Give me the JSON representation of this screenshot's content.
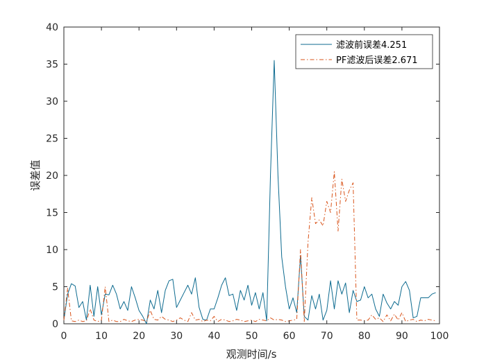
{
  "chart_data": {
    "type": "line",
    "title": "",
    "xlabel": "观测时间/s",
    "ylabel": "误差值",
    "xlim": [
      0,
      100
    ],
    "ylim": [
      0,
      40
    ],
    "xticks": [
      0,
      10,
      20,
      30,
      40,
      50,
      60,
      70,
      80,
      90,
      100
    ],
    "yticks": [
      0,
      5,
      10,
      15,
      20,
      25,
      30,
      35,
      40
    ],
    "grid": false,
    "legend_position": "top-right",
    "x": [
      0,
      1,
      2,
      3,
      4,
      5,
      6,
      7,
      8,
      9,
      10,
      11,
      12,
      13,
      14,
      15,
      16,
      17,
      18,
      19,
      20,
      21,
      22,
      23,
      24,
      25,
      26,
      27,
      28,
      29,
      30,
      31,
      32,
      33,
      34,
      35,
      36,
      37,
      38,
      39,
      40,
      41,
      42,
      43,
      44,
      45,
      46,
      47,
      48,
      49,
      50,
      51,
      52,
      53,
      54,
      55,
      56,
      57,
      58,
      59,
      60,
      61,
      62,
      63,
      64,
      65,
      66,
      67,
      68,
      69,
      70,
      71,
      72,
      73,
      74,
      75,
      76,
      77,
      78,
      79,
      80,
      81,
      82,
      83,
      84,
      85,
      86,
      87,
      88,
      89,
      90,
      91,
      92,
      93,
      94,
      95,
      96,
      97,
      98,
      99
    ],
    "series": [
      {
        "name": "滤波前误差4.251",
        "color": "#0c6a8f",
        "dash": "solid",
        "values": [
          0.5,
          4.0,
          5.4,
          5.1,
          2.2,
          3.0,
          0.5,
          5.2,
          1.0,
          5.0,
          1.2,
          4.0,
          3.9,
          5.2,
          4.0,
          2.0,
          3.0,
          1.8,
          5.0,
          3.5,
          1.8,
          1.0,
          0.0,
          3.2,
          2.0,
          4.5,
          1.5,
          4.5,
          5.8,
          6.0,
          2.2,
          3.2,
          4.2,
          5.2,
          4.0,
          6.2,
          2.2,
          0.6,
          0.5,
          2.0,
          2.0,
          3.5,
          5.2,
          6.2,
          3.8,
          4.0,
          1.8,
          4.5,
          3.2,
          5.2,
          2.5,
          4.2,
          2.0,
          4.2,
          0.4,
          20.0,
          35.5,
          20.0,
          9.0,
          5.0,
          2.0,
          3.5,
          1.5,
          9.2,
          1.0,
          0.5,
          3.8,
          2.0,
          4.0,
          0.5,
          1.8,
          5.8,
          2.0,
          5.8,
          4.0,
          5.5,
          1.5,
          4.5,
          3.0,
          3.2,
          5.0,
          3.5,
          4.0,
          2.0,
          1.0,
          4.0,
          2.8,
          2.0,
          3.0,
          2.5,
          5.0,
          5.7,
          4.5,
          0.8,
          1.0,
          3.5,
          3.5,
          3.5,
          4.0,
          4.2
        ]
      },
      {
        "name": "PF滤波后误差2.671",
        "color": "#d95319",
        "dash": "dashdot",
        "values": [
          0.5,
          4.8,
          0.4,
          0.3,
          0.5,
          0.3,
          0.4,
          2.0,
          0.5,
          0.3,
          0.5,
          5.0,
          0.3,
          0.5,
          0.3,
          0.3,
          0.6,
          0.4,
          0.3,
          0.5,
          0.6,
          0.5,
          0.3,
          1.8,
          0.6,
          0.5,
          1.0,
          0.6,
          0.5,
          0.3,
          0.5,
          0.8,
          0.5,
          0.3,
          1.5,
          0.5,
          0.6,
          0.3,
          0.5,
          0.4,
          1.0,
          0.3,
          0.6,
          0.5,
          0.3,
          0.4,
          0.6,
          0.5,
          0.3,
          0.4,
          0.5,
          0.3,
          0.6,
          0.5,
          0.4,
          0.8,
          0.5,
          0.6,
          0.5,
          0.3,
          0.4,
          0.5,
          0.6,
          10.0,
          0.3,
          11.0,
          17.0,
          13.5,
          14.0,
          13.2,
          16.5,
          15.0,
          20.5,
          12.5,
          19.5,
          16.5,
          18.0,
          19.0,
          0.5,
          0.5,
          0.4,
          0.5,
          1.2,
          0.6,
          0.8,
          0.3,
          1.2,
          0.4,
          1.3,
          0.5,
          1.5,
          0.3,
          0.5,
          0.6,
          0.3,
          0.5,
          0.4,
          0.6,
          0.5,
          0.4
        ]
      }
    ]
  }
}
